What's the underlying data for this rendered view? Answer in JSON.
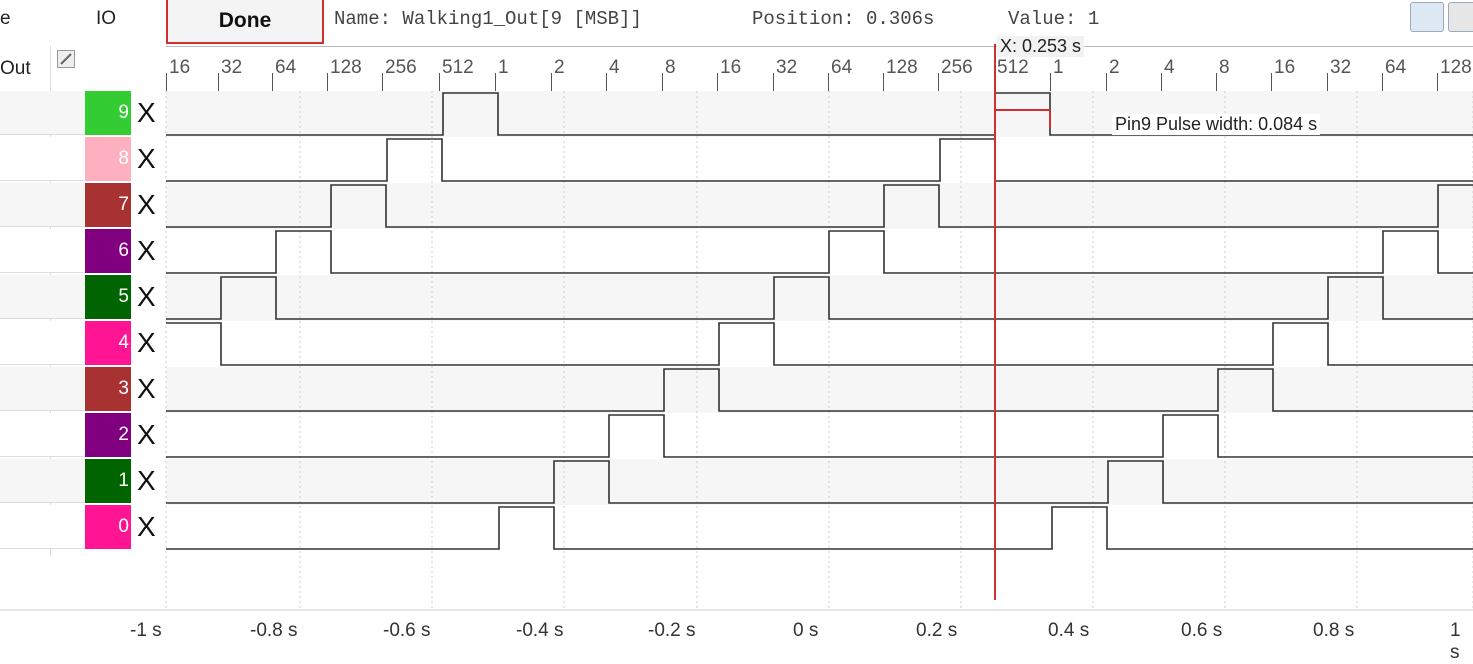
{
  "header": {
    "col_left_label": "e",
    "col_left_sub": "Out",
    "io_label": "IO",
    "done_label": "Done",
    "info_name": "Name: Walking1_Out[9 [MSB]]",
    "info_position": "Position: 0.306s",
    "info_value": "Value: 1"
  },
  "scale_labels": [
    "16",
    "32",
    "64",
    "128",
    "256",
    "512",
    "1",
    "2",
    "4",
    "8",
    "16",
    "32",
    "64",
    "128",
    "256",
    "512",
    "1",
    "2",
    "4",
    "8",
    "16",
    "32",
    "64",
    "128"
  ],
  "rows": [
    {
      "label": "9",
      "color": "#33cc33",
      "x": "X"
    },
    {
      "label": "8",
      "color": "#ffb0c0",
      "x": "X"
    },
    {
      "label": "7",
      "color": "#a83232",
      "x": "X"
    },
    {
      "label": "6",
      "color": "#800080",
      "x": "X"
    },
    {
      "label": "5",
      "color": "#006400",
      "x": "X"
    },
    {
      "label": "4",
      "color": "#ff1493",
      "x": "X"
    },
    {
      "label": "3",
      "color": "#a83232",
      "x": "X"
    },
    {
      "label": "2",
      "color": "#800080",
      "x": "X"
    },
    {
      "label": "1",
      "color": "#006400",
      "x": "X"
    },
    {
      "label": "0",
      "color": "#ff1493",
      "x": "X"
    }
  ],
  "x_axis": [
    "-1 s",
    "-0.8 s",
    "-0.6 s",
    "-0.4 s",
    "-0.2 s",
    "0 s",
    "0.2 s",
    "0.4 s",
    "0.6 s",
    "0.8 s",
    "1 s"
  ],
  "cursor": {
    "label": "X: 0.253 s",
    "color": "#d03030"
  },
  "pulse_annotation": "Pin9 Pulse width: 0.084 s"
}
